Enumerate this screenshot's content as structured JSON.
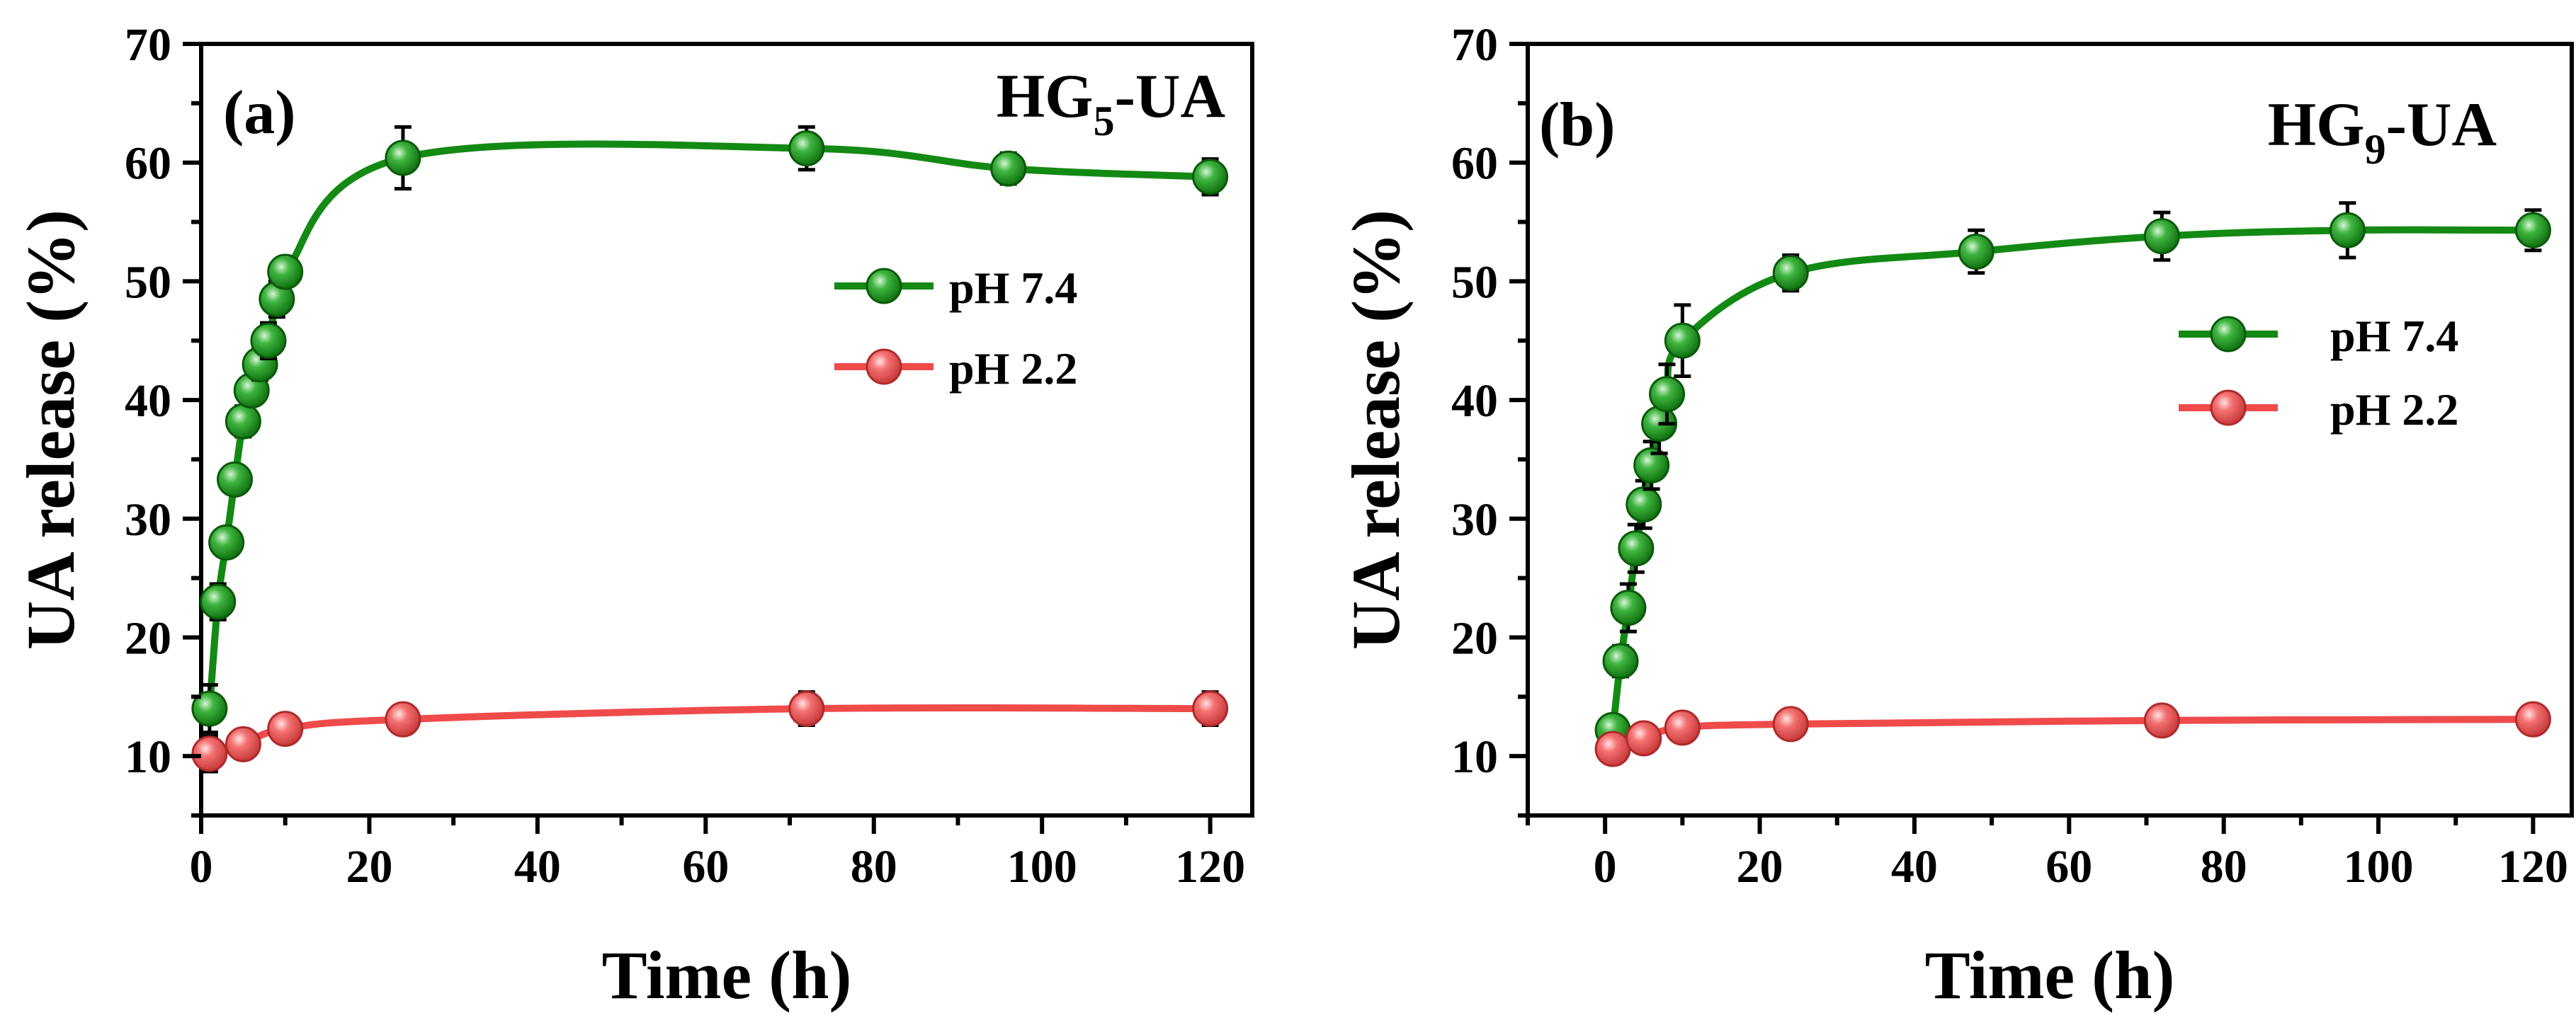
{
  "chart_data": [
    {
      "type": "line",
      "panel_label": "(a)",
      "sample_title": {
        "main": "HG",
        "sub": "5",
        "suffix": "-UA"
      },
      "xlabel": "Time (h)",
      "ylabel": "UA release (%)",
      "xlim": [
        0,
        125
      ],
      "ylim": [
        5,
        70
      ],
      "xticks": [
        0,
        20,
        40,
        60,
        80,
        100,
        120
      ],
      "yticks": [
        10,
        20,
        30,
        40,
        50,
        60,
        70
      ],
      "legend_position": "middle-right",
      "series": [
        {
          "name": "pH 7.4",
          "color": "#138a13",
          "x": [
            1,
            2,
            3,
            4,
            5,
            6,
            7,
            8,
            9,
            10,
            24,
            72,
            96,
            120
          ],
          "y": [
            14,
            23,
            28,
            33.3,
            38.2,
            40.8,
            43,
            45,
            48.5,
            50.8,
            60.4,
            61.2,
            59.5,
            58.8
          ],
          "err": [
            2.0,
            1.5,
            1.0,
            1.2,
            1.3,
            1.2,
            1.3,
            1.5,
            1.5,
            1.0,
            2.6,
            1.8,
            1.3,
            1.5
          ]
        },
        {
          "name": "pH 2.2",
          "color": "#ef4b4b",
          "x": [
            1,
            5,
            10,
            24,
            72,
            120
          ],
          "y": [
            10.2,
            11,
            12.3,
            13.1,
            14,
            14
          ],
          "err": [
            1.5,
            1.2,
            1.0,
            1.0,
            1.4,
            1.4
          ]
        }
      ]
    },
    {
      "type": "line",
      "panel_label": "(b)",
      "sample_title": {
        "main": "HG",
        "sub": "9",
        "suffix": "-UA"
      },
      "xlabel": "Time (h)",
      "ylabel": "UA release (%)",
      "xlim": [
        -10,
        125
      ],
      "ylim": [
        5,
        70
      ],
      "xticks": [
        0,
        20,
        40,
        60,
        80,
        100,
        120
      ],
      "yticks": [
        10,
        20,
        30,
        40,
        50,
        60,
        70
      ],
      "legend_position": "middle-right",
      "series": [
        {
          "name": "pH 7.4",
          "color": "#138a13",
          "x": [
            1,
            2,
            3,
            4,
            5,
            6,
            7,
            8,
            10,
            24,
            48,
            72,
            96,
            120
          ],
          "y": [
            12.2,
            18,
            22.5,
            27.5,
            31.2,
            34.5,
            38,
            40.5,
            45,
            50.7,
            52.5,
            53.8,
            54.3,
            54.3
          ],
          "err": [
            1.2,
            1.3,
            2.0,
            2.0,
            2.0,
            2.0,
            2.5,
            2.5,
            3.0,
            1.5,
            1.8,
            2.0,
            2.3,
            1.7
          ]
        },
        {
          "name": "pH 2.2",
          "color": "#ef4b4b",
          "x": [
            1,
            5,
            10,
            24,
            72,
            120
          ],
          "y": [
            10.6,
            11.5,
            12.4,
            12.7,
            13,
            13.1
          ],
          "err": [
            1.0,
            1.0,
            1.0,
            0.9,
            1.1,
            1.1
          ]
        }
      ]
    }
  ]
}
